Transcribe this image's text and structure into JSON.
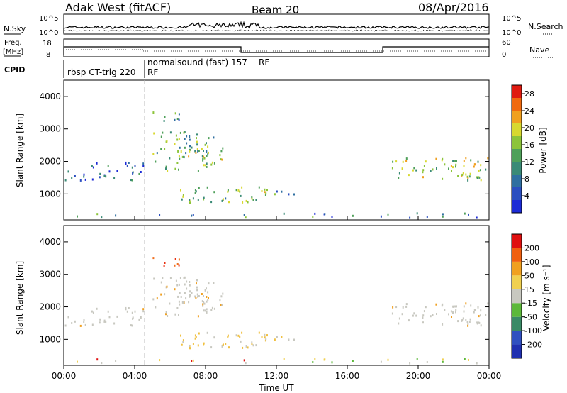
{
  "header": {
    "station": "Adak West (fitACF)",
    "beam": "Beam 20",
    "date": "08/Apr/2016"
  },
  "top_panels": {
    "nsky_label": "N.Sky",
    "nsearch_label": "N.Search",
    "nsky_ticks": [
      "10^5",
      "10^0"
    ],
    "freq_label_1": "Freq.",
    "freq_label_2": "[MHz]",
    "freq_ticks": [
      "18",
      "8"
    ],
    "nave_ticks": [
      "60",
      "0"
    ],
    "nave_label": "Nave",
    "cpid_label": "CPID",
    "cpid_segments": [
      {
        "text": "rbsp CT-trig 220",
        "start_h": 0,
        "end_h": 4.5
      },
      {
        "text": "normalsound (fast) 157",
        "start_h": 4.5,
        "end_h": 24
      }
    ],
    "rf_label": "RF"
  },
  "chart_data": [
    {
      "type": "heatmap",
      "quantity": "power",
      "ylabel": "Slant Range [km]",
      "ylim": [
        200,
        4500
      ],
      "yticks": [
        1000,
        2000,
        3000,
        4000
      ],
      "xlim_hours": [
        0,
        24
      ],
      "colorbar": {
        "label": "Power [dB]",
        "ticks": [
          4,
          8,
          12,
          16,
          20,
          24,
          28
        ],
        "range": [
          0,
          30
        ],
        "colors": [
          "#1c2bd6",
          "#2b4fc0",
          "#2f6fa0",
          "#3a8a76",
          "#4fa05a",
          "#8cc43a",
          "#d8d830",
          "#f0a020",
          "#f06a10",
          "#e01a10"
        ]
      }
    },
    {
      "type": "heatmap",
      "quantity": "velocity",
      "ylabel": "Slant Range [km]",
      "ylim": [
        200,
        4500
      ],
      "yticks": [
        1000,
        2000,
        3000,
        4000
      ],
      "xlim_hours": [
        0,
        24
      ],
      "colorbar": {
        "label": "Velocity [m s⁻¹]",
        "ticks": [
          "200",
          "100",
          "50",
          "15",
          "-15",
          "-50",
          "-100",
          "-200"
        ],
        "colors": [
          "#2030b0",
          "#3050c0",
          "#3a8a66",
          "#5cb83a",
          "#c8c8c0",
          "#f0d050",
          "#f0a020",
          "#f06010",
          "#e01010"
        ]
      }
    }
  ],
  "x_axis": {
    "ticks": [
      "00:00",
      "04:00",
      "08:00",
      "12:00",
      "16:00",
      "20:00",
      "00:00"
    ],
    "label": "Time UT"
  }
}
